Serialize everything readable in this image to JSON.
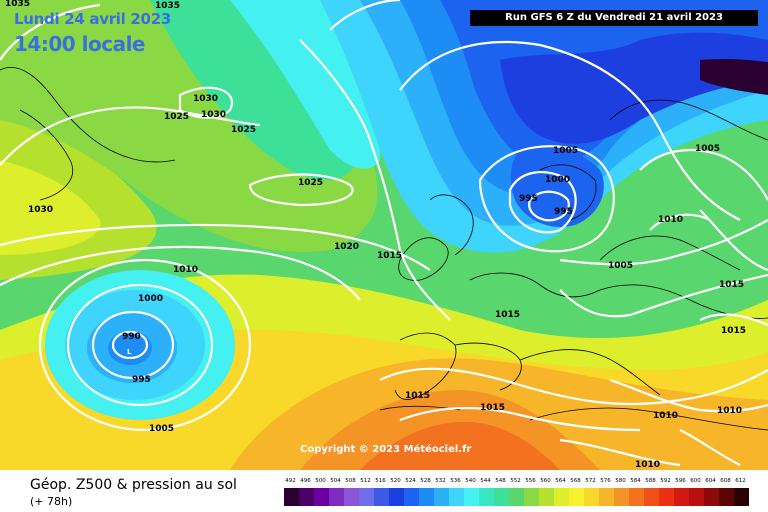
{
  "date_label": "Lundi 24 avril 2023",
  "time_label": "14:00 locale",
  "run_label": "Run GFS 6 Z du Vendredi 21 avril 2023",
  "copyright": "Copyright © 2023 Météociel.fr",
  "footer": {
    "title": "Géop. Z500 & pression au sol",
    "subtitle": "(+ 78h)"
  },
  "legend": {
    "labels": [
      "492",
      "496",
      "500",
      "504",
      "508",
      "512",
      "516",
      "520",
      "524",
      "528",
      "532",
      "536",
      "540",
      "544",
      "548",
      "552",
      "556",
      "560",
      "564",
      "568",
      "572",
      "576",
      "580",
      "584",
      "588",
      "592",
      "596",
      "600",
      "604",
      "608",
      "612"
    ],
    "colors": [
      "#2a0033",
      "#4b0066",
      "#6a00a0",
      "#7e2cc0",
      "#8a55d8",
      "#6e6ee8",
      "#3c5ae6",
      "#1e3fe0",
      "#1c64ef",
      "#1e8cf5",
      "#2db0fa",
      "#3ed4fb",
      "#44f0f0",
      "#38e8c4",
      "#3ce098",
      "#5ad66e",
      "#8ad844",
      "#b6e02e",
      "#dcee2c",
      "#f6f02e",
      "#f8d828",
      "#f7b62a",
      "#f59426",
      "#f27220",
      "#ee5018",
      "#e83212",
      "#d41a10",
      "#b8100e",
      "#8e0a0a",
      "#5a0606",
      "#2a0202"
    ]
  },
  "pressure_labels": [
    "1035",
    "1030",
    "1025",
    "1030",
    "1030",
    "1025",
    "1025",
    "1020",
    "1015",
    "1010",
    "1000",
    "990",
    "995",
    "1005",
    "1005",
    "1000",
    "995",
    "995",
    "1005",
    "1010",
    "1005",
    "1015",
    "1015",
    "1015",
    "1015",
    "1010",
    "1015",
    "1010",
    "1010",
    "1035"
  ],
  "low_marker": "L"
}
